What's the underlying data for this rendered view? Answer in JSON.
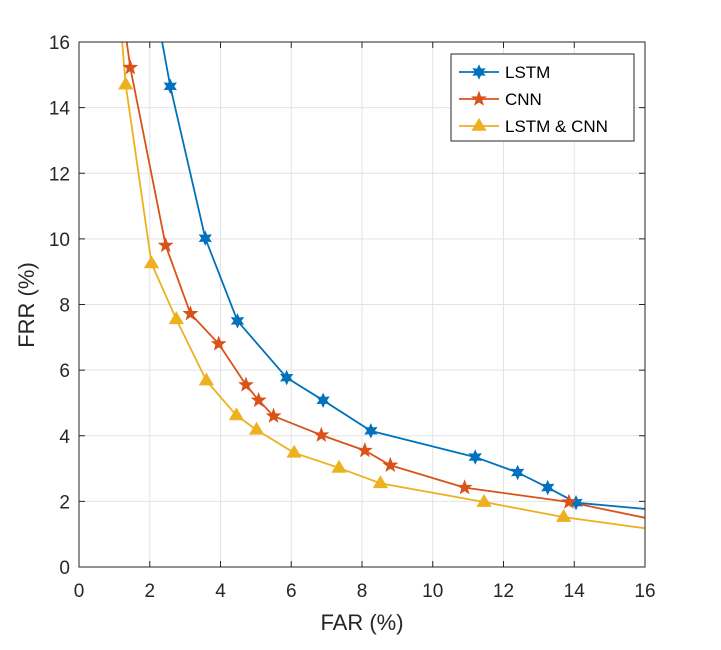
{
  "chart_data": {
    "type": "line",
    "title": "",
    "xlabel": "FAR (%)",
    "ylabel": "FRR (%)",
    "xlim": [
      0,
      16
    ],
    "ylim": [
      0,
      16
    ],
    "xticks": [
      0,
      2,
      4,
      6,
      8,
      10,
      12,
      14,
      16
    ],
    "yticks": [
      0,
      2,
      4,
      6,
      8,
      10,
      12,
      14,
      16
    ],
    "grid": true,
    "legend_position": "top-right",
    "series": [
      {
        "name": "LSTM",
        "color": "#0072BD",
        "marker": "hexagram",
        "curve": [
          [
            2.35,
            16.0
          ],
          [
            2.58,
            14.65
          ],
          [
            3.57,
            10.02
          ],
          [
            4.48,
            7.5
          ],
          [
            5.87,
            5.77
          ],
          [
            6.9,
            5.08
          ],
          [
            8.25,
            4.15
          ],
          [
            11.2,
            3.35
          ],
          [
            12.4,
            2.88
          ],
          [
            13.25,
            2.42
          ],
          [
            14.05,
            1.96
          ],
          [
            16.0,
            1.77
          ]
        ],
        "markers": [
          [
            2.58,
            14.65
          ],
          [
            3.57,
            10.02
          ],
          [
            4.48,
            7.5
          ],
          [
            5.87,
            5.77
          ],
          [
            6.9,
            5.08
          ],
          [
            8.25,
            4.15
          ],
          [
            11.2,
            3.35
          ],
          [
            12.4,
            2.88
          ],
          [
            13.25,
            2.42
          ],
          [
            14.05,
            1.96
          ]
        ]
      },
      {
        "name": "CNN",
        "color": "#D95319",
        "marker": "pentagram",
        "curve": [
          [
            1.35,
            16.0
          ],
          [
            1.45,
            15.22
          ],
          [
            2.45,
            9.8
          ],
          [
            3.15,
            7.72
          ],
          [
            3.95,
            6.8
          ],
          [
            4.72,
            5.55
          ],
          [
            5.08,
            5.08
          ],
          [
            5.5,
            4.6
          ],
          [
            6.85,
            4.02
          ],
          [
            8.08,
            3.55
          ],
          [
            8.8,
            3.1
          ],
          [
            10.9,
            2.42
          ],
          [
            13.85,
            1.98
          ],
          [
            16.0,
            1.5
          ]
        ],
        "markers": [
          [
            1.45,
            15.22
          ],
          [
            2.45,
            9.8
          ],
          [
            3.15,
            7.72
          ],
          [
            3.95,
            6.8
          ],
          [
            4.72,
            5.55
          ],
          [
            5.08,
            5.08
          ],
          [
            5.5,
            4.6
          ],
          [
            6.85,
            4.02
          ],
          [
            8.08,
            3.55
          ],
          [
            8.8,
            3.1
          ],
          [
            10.9,
            2.42
          ],
          [
            13.85,
            1.98
          ]
        ]
      },
      {
        "name": "LSTM & CNN",
        "color": "#EDB120",
        "marker": "triangle",
        "curve": [
          [
            1.22,
            16.0
          ],
          [
            1.32,
            14.7
          ],
          [
            2.05,
            9.25
          ],
          [
            2.75,
            7.55
          ],
          [
            3.6,
            5.68
          ],
          [
            4.45,
            4.62
          ],
          [
            5.02,
            4.18
          ],
          [
            6.08,
            3.48
          ],
          [
            7.35,
            3.02
          ],
          [
            8.52,
            2.55
          ],
          [
            11.45,
            1.98
          ],
          [
            13.7,
            1.52
          ],
          [
            16.0,
            1.18
          ]
        ],
        "markers": [
          [
            1.32,
            14.7
          ],
          [
            2.05,
            9.25
          ],
          [
            2.75,
            7.55
          ],
          [
            3.6,
            5.68
          ],
          [
            4.45,
            4.62
          ],
          [
            5.02,
            4.18
          ],
          [
            6.08,
            3.48
          ],
          [
            7.35,
            3.02
          ],
          [
            8.52,
            2.55
          ],
          [
            11.45,
            1.98
          ],
          [
            13.7,
            1.52
          ]
        ]
      }
    ]
  }
}
